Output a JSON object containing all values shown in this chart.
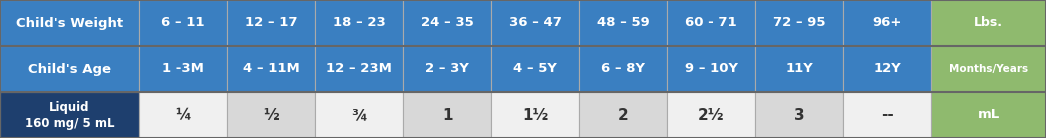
{
  "rows": [
    {
      "label": "Child's Weight",
      "values": [
        "6 – 11",
        "12 – 17",
        "18 – 23",
        "24 – 35",
        "36 – 47",
        "48 – 59",
        "60 - 71",
        "72 – 95",
        "96+"
      ],
      "unit": "Lbs.",
      "row_bg": "#3a7fc1",
      "text_color": "#ffffff",
      "unit_bg": "#8fba6e",
      "unit_text_color": "#ffffff",
      "label_bg": "#3a7fc1",
      "label_text_color": "#ffffff"
    },
    {
      "label": "Child's Age",
      "values": [
        "1 -3M",
        "4 – 11M",
        "12 – 23M",
        "2 – 3Y",
        "4 – 5Y",
        "6 – 8Y",
        "9 – 10Y",
        "11Y",
        "12Y"
      ],
      "unit": "Months/Years",
      "row_bg": "#3a7fc1",
      "text_color": "#ffffff",
      "unit_bg": "#8fba6e",
      "unit_text_color": "#ffffff",
      "label_bg": "#3a7fc1",
      "label_text_color": "#ffffff"
    },
    {
      "label": "Liquid\n160 mg/ 5 mL",
      "values": [
        "¼",
        "½",
        "¾",
        "1",
        "1½",
        "2",
        "2½",
        "3",
        "--"
      ],
      "row_bg_alt": [
        "#f0f0f0",
        "#d8d8d8",
        "#f0f0f0",
        "#d8d8d8",
        "#f0f0f0",
        "#d8d8d8",
        "#f0f0f0",
        "#d8d8d8",
        "#f0f0f0"
      ],
      "unit": "mL",
      "text_color": "#333333",
      "unit_bg": "#8fba6e",
      "unit_text_color": "#ffffff",
      "label_bg": "#1e3f6e",
      "label_text_color": "#ffffff"
    }
  ],
  "col_widths": [
    1.55,
    0.98,
    0.98,
    0.98,
    0.98,
    0.98,
    0.98,
    0.98,
    0.98,
    0.98,
    1.28
  ],
  "border_color": "#aaaaaa",
  "row_border_color": "#888888",
  "figsize": [
    10.46,
    1.38
  ],
  "dpi": 100
}
